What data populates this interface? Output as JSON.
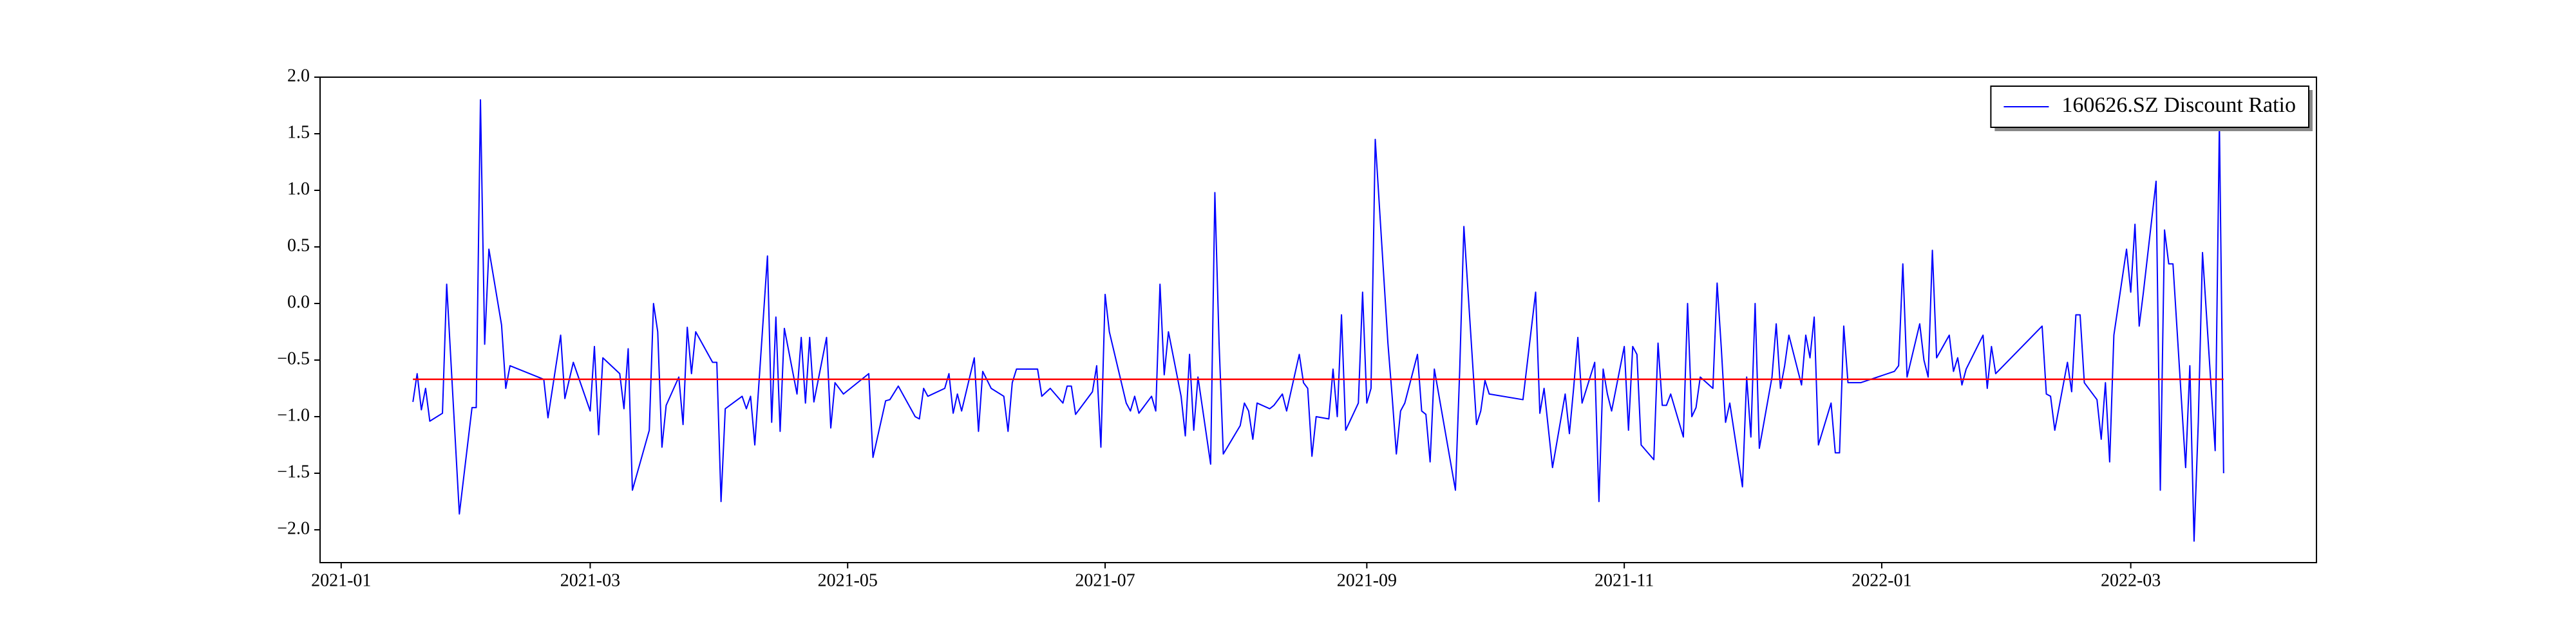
{
  "chart_data": {
    "type": "line",
    "series": [
      {
        "name": "160626.SZ Discount Ratio",
        "color": "#0000ff",
        "values": [
          -0.87,
          -0.62,
          -0.94,
          -0.75,
          -1.04,
          -0.97,
          0.17,
          -1.86,
          -0.92,
          -0.92,
          1.8,
          -0.36,
          0.48,
          -0.19,
          -0.75,
          -0.55,
          -0.67,
          -1.01,
          -0.28,
          -0.84,
          -0.52,
          -0.95,
          -0.38,
          -1.16,
          -0.48,
          -0.62,
          -0.93,
          -0.4,
          -1.65,
          -1.12,
          0.0,
          -0.25,
          -1.27,
          -0.9,
          -0.65,
          -1.07,
          -0.21,
          -0.62,
          -0.25,
          -0.52,
          -0.52,
          -1.75,
          -0.93,
          -0.82,
          -0.93,
          -0.82,
          -1.25,
          0.42,
          -1.05,
          -0.12,
          -1.13,
          -0.22,
          -0.8,
          -0.3,
          -0.88,
          -0.3,
          -0.87,
          -0.3,
          -1.1,
          -0.7,
          -0.8,
          -0.62,
          -1.36,
          -0.86,
          -0.85,
          -0.73,
          -1.0,
          -1.02,
          -0.75,
          -0.82,
          -0.75,
          -0.62,
          -0.97,
          -0.8,
          -0.95,
          -0.48,
          -1.13,
          -0.6,
          -0.75,
          -0.82,
          -1.13,
          -0.7,
          -0.58,
          -0.58,
          -0.82,
          -0.75,
          -0.88,
          -0.73,
          -0.73,
          -0.98,
          -0.78,
          -0.55,
          -1.27,
          0.08,
          -0.25,
          -0.88,
          -0.95,
          -0.82,
          -0.97,
          -0.82,
          -0.95,
          0.17,
          -0.63,
          -0.25,
          -0.82,
          -1.17,
          -0.45,
          -1.12,
          -0.65,
          -1.42,
          0.98,
          -0.35,
          -1.33,
          -1.08,
          -0.88,
          -0.95,
          -1.2,
          -0.88,
          -0.93,
          -0.9,
          -0.8,
          -0.95,
          -0.45,
          -0.7,
          -0.75,
          -1.35,
          -1.0,
          -1.02,
          -0.58,
          -1.0,
          -0.1,
          -1.12,
          -0.88,
          0.1,
          -0.88,
          -0.75,
          1.45,
          -0.35,
          -0.82,
          -1.33,
          -0.95,
          -0.88,
          -0.45,
          -0.95,
          -0.98,
          -1.4,
          -0.58,
          -1.65,
          -0.6,
          0.68,
          -1.07,
          -0.95,
          -0.68,
          -0.8,
          -0.85,
          0.1,
          -0.97,
          -0.75,
          -1.45,
          -0.8,
          -1.15,
          -0.75,
          -0.3,
          -0.88,
          -0.52,
          -1.75,
          -0.58,
          -0.8,
          -0.95,
          -0.38,
          -1.12,
          -0.38,
          -0.45,
          -1.25,
          -1.38,
          -0.35,
          -0.9,
          -0.9,
          -0.8,
          -1.18,
          0.0,
          -1.0,
          -0.92,
          -0.65,
          -0.75,
          0.18,
          -0.4,
          -1.05,
          -0.88,
          -1.62,
          -0.65,
          -1.18,
          0.0,
          -1.28,
          -0.65,
          -0.18,
          -0.75,
          -0.55,
          -0.28,
          -0.72,
          -0.28,
          -0.48,
          -0.12,
          -1.25,
          -0.88,
          -1.32,
          -1.32,
          -0.2,
          -0.7,
          -0.7,
          -0.6,
          -0.55,
          0.35,
          -0.65,
          -0.18,
          -0.5,
          -0.65,
          0.47,
          -0.48,
          -0.28,
          -0.6,
          -0.48,
          -0.72,
          -0.58,
          -0.28,
          -0.75,
          -0.38,
          -0.62,
          -0.2,
          -0.8,
          -0.82,
          -1.12,
          -0.52,
          -0.78,
          -0.1,
          -0.1,
          -0.7,
          -0.85,
          -1.2,
          -0.7,
          -1.4,
          -0.28,
          0.48,
          0.1,
          0.7,
          -0.2,
          0.1,
          1.08,
          -1.65,
          0.65,
          0.35,
          0.35,
          -1.45,
          -0.55,
          -2.1,
          -1.05,
          0.45,
          -1.3,
          1.6,
          -1.5
        ]
      }
    ],
    "x": [
      "2021-01-18",
      "2021-01-19",
      "2021-01-20",
      "2021-01-21",
      "2021-01-22",
      "2021-01-25",
      "2021-01-26",
      "2021-01-29",
      "2021-02-01",
      "2021-02-02",
      "2021-02-03",
      "2021-02-04",
      "2021-02-05",
      "2021-02-08",
      "2021-02-09",
      "2021-02-10",
      "2021-02-18",
      "2021-02-19",
      "2021-02-22",
      "2021-02-23",
      "2021-02-25",
      "2021-03-01",
      "2021-03-02",
      "2021-03-03",
      "2021-03-04",
      "2021-03-08",
      "2021-03-09",
      "2021-03-10",
      "2021-03-11",
      "2021-03-15",
      "2021-03-16",
      "2021-03-17",
      "2021-03-18",
      "2021-03-19",
      "2021-03-22",
      "2021-03-23",
      "2021-03-24",
      "2021-03-25",
      "2021-03-26",
      "2021-03-30",
      "2021-03-31",
      "2021-04-01",
      "2021-04-02",
      "2021-04-06",
      "2021-04-07",
      "2021-04-08",
      "2021-04-09",
      "2021-04-12",
      "2021-04-13",
      "2021-04-14",
      "2021-04-15",
      "2021-04-16",
      "2021-04-19",
      "2021-04-20",
      "2021-04-21",
      "2021-04-22",
      "2021-04-23",
      "2021-04-26",
      "2021-04-27",
      "2021-04-28",
      "2021-04-30",
      "2021-05-06",
      "2021-05-07",
      "2021-05-10",
      "2021-05-11",
      "2021-05-13",
      "2021-05-17",
      "2021-05-18",
      "2021-05-19",
      "2021-05-20",
      "2021-05-24",
      "2021-05-25",
      "2021-05-26",
      "2021-05-27",
      "2021-05-28",
      "2021-05-31",
      "2021-06-01",
      "2021-06-02",
      "2021-06-04",
      "2021-06-07",
      "2021-06-08",
      "2021-06-09",
      "2021-06-10",
      "2021-06-15",
      "2021-06-16",
      "2021-06-18",
      "2021-06-21",
      "2021-06-22",
      "2021-06-23",
      "2021-06-24",
      "2021-06-28",
      "2021-06-29",
      "2021-06-30",
      "2021-07-01",
      "2021-07-02",
      "2021-07-06",
      "2021-07-07",
      "2021-07-08",
      "2021-07-09",
      "2021-07-12",
      "2021-07-13",
      "2021-07-14",
      "2021-07-15",
      "2021-07-16",
      "2021-07-19",
      "2021-07-20",
      "2021-07-21",
      "2021-07-22",
      "2021-07-23",
      "2021-07-26",
      "2021-07-27",
      "2021-07-28",
      "2021-07-29",
      "2021-08-02",
      "2021-08-03",
      "2021-08-04",
      "2021-08-05",
      "2021-08-06",
      "2021-08-09",
      "2021-08-10",
      "2021-08-12",
      "2021-08-13",
      "2021-08-16",
      "2021-08-17",
      "2021-08-18",
      "2021-08-19",
      "2021-08-20",
      "2021-08-23",
      "2021-08-24",
      "2021-08-25",
      "2021-08-26",
      "2021-08-27",
      "2021-08-30",
      "2021-08-31",
      "2021-09-01",
      "2021-09-02",
      "2021-09-03",
      "2021-09-06",
      "2021-09-07",
      "2021-09-08",
      "2021-09-09",
      "2021-09-10",
      "2021-09-13",
      "2021-09-14",
      "2021-09-15",
      "2021-09-16",
      "2021-09-17",
      "2021-09-22",
      "2021-09-23",
      "2021-09-24",
      "2021-09-27",
      "2021-09-28",
      "2021-09-29",
      "2021-09-30",
      "2021-10-08",
      "2021-10-11",
      "2021-10-12",
      "2021-10-13",
      "2021-10-15",
      "2021-10-18",
      "2021-10-19",
      "2021-10-20",
      "2021-10-21",
      "2021-10-22",
      "2021-10-25",
      "2021-10-26",
      "2021-10-27",
      "2021-10-28",
      "2021-10-29",
      "2021-11-01",
      "2021-11-02",
      "2021-11-03",
      "2021-11-04",
      "2021-11-05",
      "2021-11-08",
      "2021-11-09",
      "2021-11-10",
      "2021-11-11",
      "2021-11-12",
      "2021-11-15",
      "2021-11-16",
      "2021-11-17",
      "2021-11-18",
      "2021-11-19",
      "2021-11-22",
      "2021-11-23",
      "2021-11-24",
      "2021-11-25",
      "2021-11-26",
      "2021-11-29",
      "2021-11-30",
      "2021-12-01",
      "2021-12-02",
      "2021-12-03",
      "2021-12-06",
      "2021-12-07",
      "2021-12-08",
      "2021-12-09",
      "2021-12-10",
      "2021-12-13",
      "2021-12-14",
      "2021-12-15",
      "2021-12-16",
      "2021-12-17",
      "2021-12-20",
      "2021-12-21",
      "2021-12-22",
      "2021-12-23",
      "2021-12-24",
      "2021-12-27",
      "2022-01-04",
      "2022-01-05",
      "2022-01-06",
      "2022-01-07",
      "2022-01-10",
      "2022-01-11",
      "2022-01-12",
      "2022-01-13",
      "2022-01-14",
      "2022-01-17",
      "2022-01-18",
      "2022-01-19",
      "2022-01-20",
      "2022-01-21",
      "2022-01-25",
      "2022-01-26",
      "2022-01-27",
      "2022-01-28",
      "2022-02-08",
      "2022-02-09",
      "2022-02-10",
      "2022-02-11",
      "2022-02-14",
      "2022-02-15",
      "2022-02-16",
      "2022-02-17",
      "2022-02-18",
      "2022-02-21",
      "2022-02-22",
      "2022-02-23",
      "2022-02-24",
      "2022-02-25",
      "2022-02-28",
      "2022-03-01",
      "2022-03-02",
      "2022-03-03",
      "2022-03-04",
      "2022-03-07",
      "2022-03-08",
      "2022-03-09",
      "2022-03-10",
      "2022-03-11",
      "2022-03-14",
      "2022-03-15",
      "2022-03-16",
      "2022-03-17",
      "2022-03-18",
      "2022-03-21",
      "2022-03-22",
      "2022-03-23"
    ],
    "reference_line": {
      "value": -0.67,
      "color": "#ff0000"
    },
    "xlim": [
      "2020-12-27",
      "2022-04-14"
    ],
    "xticks": [
      {
        "value": "2021-01-01",
        "label": "2021-01"
      },
      {
        "value": "2021-03-01",
        "label": "2021-03"
      },
      {
        "value": "2021-05-01",
        "label": "2021-05"
      },
      {
        "value": "2021-07-01",
        "label": "2021-07"
      },
      {
        "value": "2021-09-01",
        "label": "2021-09"
      },
      {
        "value": "2021-11-01",
        "label": "2021-11"
      },
      {
        "value": "2022-01-01",
        "label": "2022-01"
      },
      {
        "value": "2022-03-01",
        "label": "2022-03"
      }
    ],
    "ylim": [
      -2.29,
      2.0
    ],
    "yticks": [
      {
        "value": -2.0,
        "label": "−2.0"
      },
      {
        "value": -1.5,
        "label": "−1.5"
      },
      {
        "value": -1.0,
        "label": "−1.0"
      },
      {
        "value": -0.5,
        "label": "−0.5"
      },
      {
        "value": 0.0,
        "label": "0.0"
      },
      0.5,
      {
        "value": 1.0,
        "label": "1.0"
      },
      1.5,
      {
        "value": 2.0,
        "label": "2.0"
      }
    ],
    "legend": "upper right"
  }
}
